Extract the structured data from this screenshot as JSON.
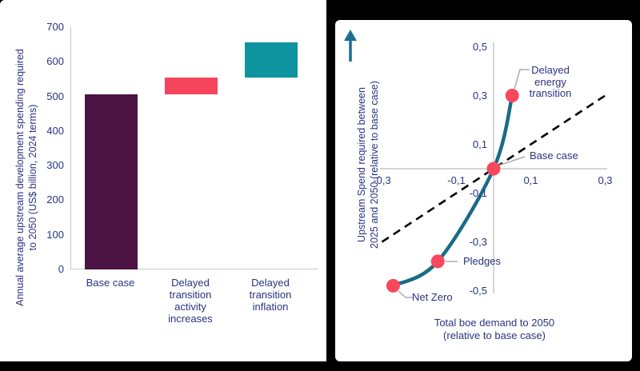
{
  "style": {
    "text_navy": "#2A3382",
    "axis_gray": "#C7C7C7",
    "connector_gray": "#ADADAD",
    "background_frame": "#000000",
    "panel_background": "#FFFFFF"
  },
  "chart_data": [
    {
      "type": "bar",
      "subtype": "waterfall",
      "ylabel": "Annual average upstream development spending required to 2050 (US$ billion, 2024 terms)",
      "ylabel_lines": [
        "Annual average upstream development spending required",
        "to 2050 (US$ billion, 2024 terms)"
      ],
      "ylim": [
        0,
        700
      ],
      "yticks": [
        700,
        600,
        500,
        400,
        300,
        200,
        100,
        0
      ],
      "grid": false,
      "categories": [
        "Base case",
        "Delayed transition activity increases",
        "Delayed transition inflation"
      ],
      "bars": [
        {
          "label": "Base case",
          "from": 0,
          "to": 505,
          "color": "#4C1442"
        },
        {
          "label": "Delayed transition activity increases",
          "from": 505,
          "to": 555,
          "color": "#F5455C"
        },
        {
          "label": "Delayed transition inflation",
          "from": 555,
          "to": 655,
          "color": "#0D949E"
        }
      ]
    },
    {
      "type": "scatter",
      "xlabel": "Total boe demand to 2050 (relative to base case)",
      "xlabel_lines": [
        "Total boe demand to 2050",
        "(relative to base case)"
      ],
      "ylabel": "Upstream Spend required between 2025 and 2050 (relative to base case)",
      "ylabel_lines": [
        "Upstream Spend required between",
        "2025 and 2050 (relative to base case)"
      ],
      "xlim": [
        -0.3,
        0.3
      ],
      "ylim": [
        -0.5,
        0.5
      ],
      "xticks": [
        "-0,3",
        "-0,1",
        "0,1",
        "0,3"
      ],
      "yticks": [
        "0,5",
        "0,3",
        "0,1",
        "-0,1",
        "-0,3",
        "-0,5"
      ],
      "decimal_separator": ",",
      "grid": false,
      "points": [
        {
          "label": "Net Zero",
          "x": -0.27,
          "y": -0.48
        },
        {
          "label": "Pledges",
          "x": -0.15,
          "y": -0.38
        },
        {
          "label": "Base case",
          "x": 0,
          "y": 0
        },
        {
          "label": "Delayed energy transition",
          "x": 0.05,
          "y": 0.3
        }
      ],
      "curve_color": "#1B6B86",
      "point_color": "#F8485E",
      "arrow_color": "#1E6E90",
      "reference_line": {
        "style": "dashed",
        "color": "#000000",
        "from": [
          -0.3,
          -0.3
        ],
        "to": [
          0.3,
          0.3
        ]
      }
    }
  ]
}
